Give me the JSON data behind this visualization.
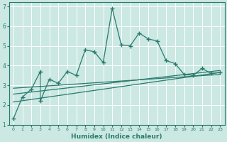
{
  "xlabel": "Humidex (Indice chaleur)",
  "ylabel": "",
  "background_color": "#cbe8e3",
  "grid_color": "#ffffff",
  "line_color": "#2a7a6e",
  "xlim": [
    -0.5,
    23.5
  ],
  "ylim": [
    1,
    7.2
  ],
  "xticks": [
    0,
    1,
    2,
    3,
    4,
    5,
    6,
    7,
    8,
    9,
    10,
    11,
    12,
    13,
    14,
    15,
    16,
    17,
    18,
    19,
    20,
    21,
    22,
    23
  ],
  "yticks": [
    1,
    2,
    3,
    4,
    5,
    6,
    7
  ],
  "scatter_x": [
    0,
    1,
    2,
    3,
    3,
    4,
    5,
    6,
    7,
    8,
    9,
    10,
    11,
    12,
    13,
    14,
    15,
    16,
    17,
    18,
    19,
    20,
    21,
    22,
    23
  ],
  "scatter_y": [
    1.3,
    2.4,
    2.8,
    3.7,
    2.2,
    3.3,
    3.1,
    3.7,
    3.5,
    4.8,
    4.7,
    4.15,
    6.9,
    5.05,
    5.0,
    5.65,
    5.35,
    5.25,
    4.25,
    4.1,
    3.55,
    3.5,
    3.85,
    3.6,
    3.65
  ],
  "line1_x": [
    0,
    23
  ],
  "line1_y": [
    2.15,
    3.65
  ],
  "line2_x": [
    0,
    23
  ],
  "line2_y": [
    2.55,
    3.75
  ],
  "line3_x": [
    0,
    23
  ],
  "line3_y": [
    2.85,
    3.55
  ]
}
